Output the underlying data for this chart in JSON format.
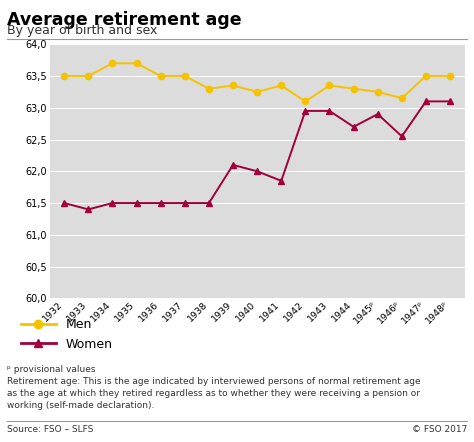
{
  "title": "Average retirement age",
  "subtitle": "By year of birth and sex",
  "years_plain": [
    1932,
    1933,
    1934,
    1935,
    1936,
    1937,
    1938,
    1939,
    1940,
    1941,
    1942,
    1943,
    1944,
    1945,
    1946,
    1947,
    1948
  ],
  "x_labels": [
    "1932",
    "1933",
    "1934",
    "1935",
    "1936",
    "1937",
    "1938",
    "1939",
    "1940",
    "1941",
    "1942",
    "1943",
    "1944",
    "1945ᵖ",
    "1946ᵖ",
    "1947ᵖ",
    "1948ᵖ"
  ],
  "men_values": [
    63.5,
    63.5,
    63.7,
    63.7,
    63.5,
    63.5,
    63.3,
    63.35,
    63.25,
    63.35,
    63.1,
    63.35,
    63.3,
    63.25,
    63.15,
    63.5,
    63.5
  ],
  "women_values": [
    61.5,
    61.4,
    61.5,
    61.5,
    61.5,
    61.5,
    61.5,
    62.1,
    62.0,
    61.85,
    62.95,
    62.95,
    62.7,
    62.9,
    62.55,
    63.1,
    63.1
  ],
  "men_color": "#F5C200",
  "women_color": "#A0003C",
  "plot_bg": "#DCDCDC",
  "ylim_min": 60.0,
  "ylim_max": 64.0,
  "ytick_step": 0.5,
  "footnote_p": "ᵖ provisional values",
  "footnote_body": "Retirement age: This is the age indicated by interviewed persons of normal retirement age\nas the age at which they retired regardless as to whether they were receiving a pension or\nworking (self-made declaration).",
  "source": "Source: FSO – SLFS",
  "copyright": "© FSO 2017"
}
